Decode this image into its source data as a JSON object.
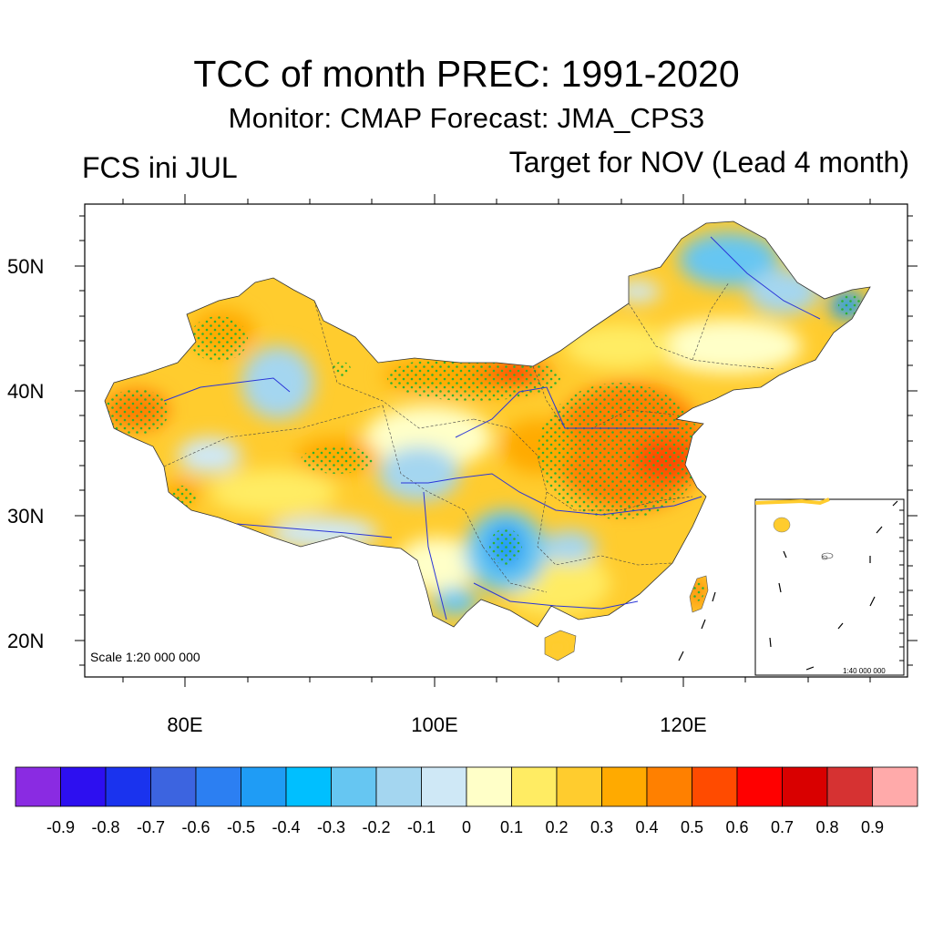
{
  "title": "TCC of month PREC: 1991-2020",
  "subtitle": "Monitor: CMAP   Forecast: JMA_CPS3",
  "left_label": "FCS ini JUL",
  "right_label": "Target for NOV (Lead 4 month)",
  "scale_main": "Scale 1:20 000 000",
  "scale_inset": "1:40 000 000",
  "lat_labels": [
    "50N",
    "40N",
    "30N",
    "20N"
  ],
  "lon_labels": [
    "80E",
    "100E",
    "120E"
  ],
  "colorbar": {
    "colors": [
      "#8a2be2",
      "#2d0ff0",
      "#1a33ee",
      "#3c64e0",
      "#2c7ff2",
      "#1f9cf5",
      "#00bfff",
      "#66c6f2",
      "#a4d6f0",
      "#cfe8f6",
      "#ffffc8",
      "#ffec63",
      "#ffcc2e",
      "#ffaa00",
      "#ff8000",
      "#ff4b00",
      "#ff0000",
      "#d90000",
      "#d63232",
      "#ffaaaa"
    ],
    "labels": [
      "-0.9",
      "-0.8",
      "-0.7",
      "-0.6",
      "-0.5",
      "-0.4",
      "-0.3",
      "-0.2",
      "-0.1",
      "0",
      "0.1",
      "0.2",
      "0.3",
      "0.4",
      "0.5",
      "0.6",
      "0.7",
      "0.8",
      "0.9"
    ]
  }
}
